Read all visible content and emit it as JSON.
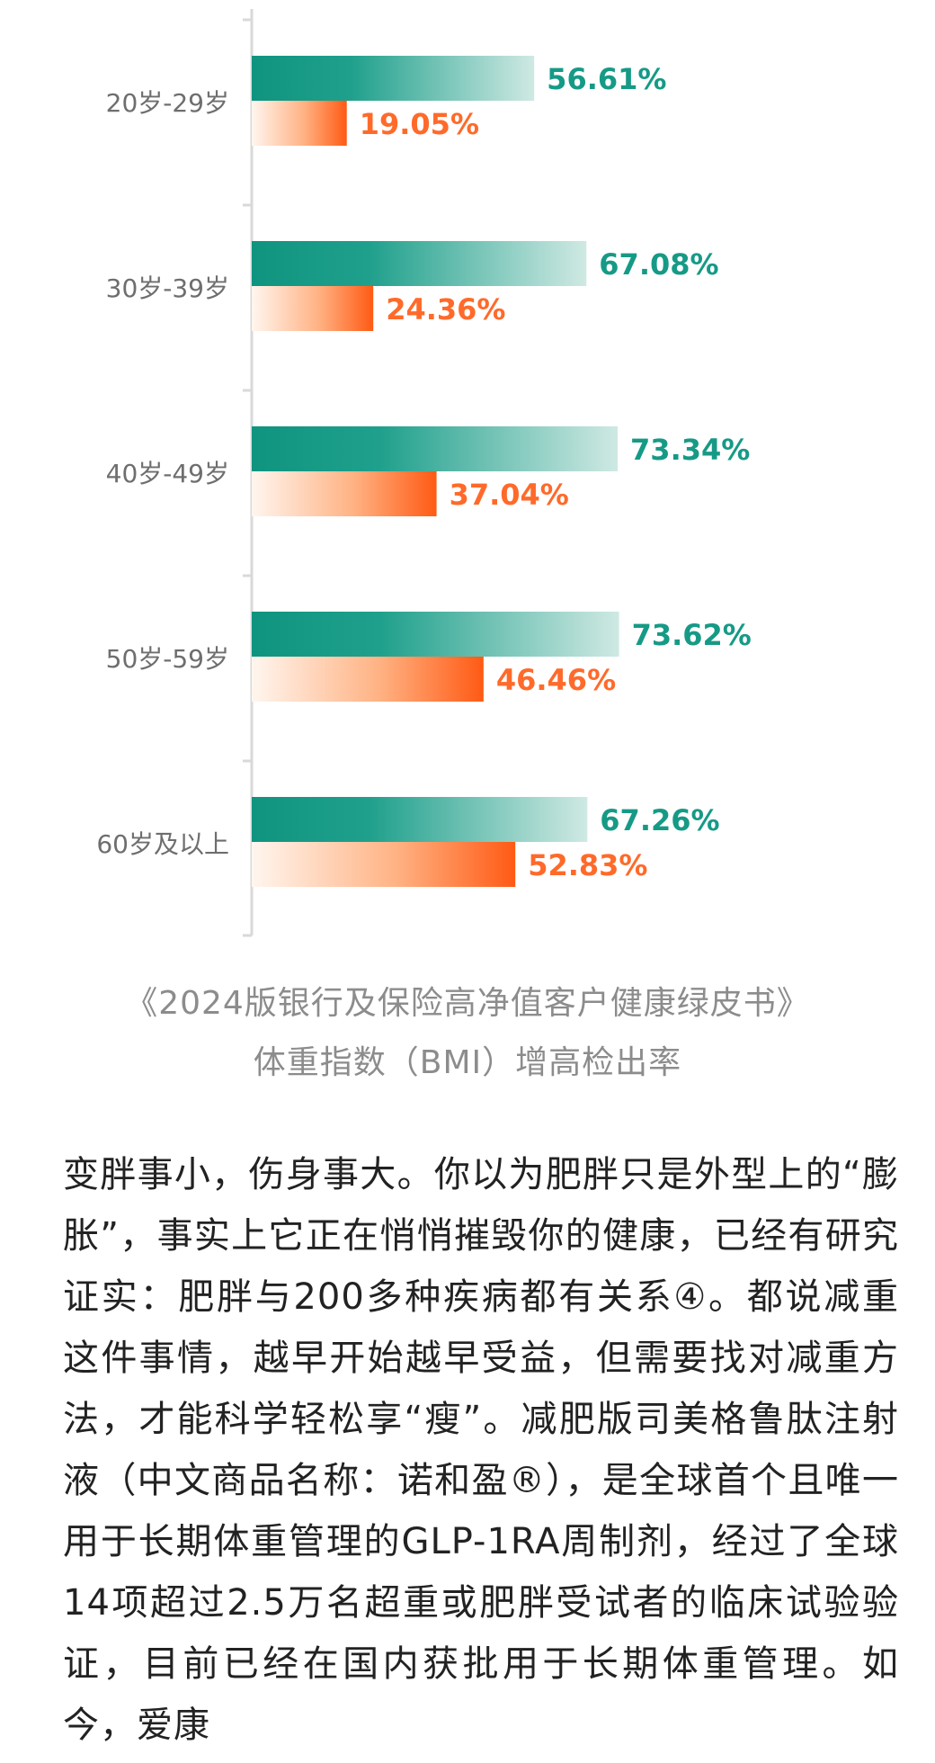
{
  "chart_data": {
    "type": "bar",
    "orientation": "horizontal",
    "categories": [
      "20岁-29岁",
      "30岁-39岁",
      "40岁-49岁",
      "50岁-59岁",
      "60岁及以上"
    ],
    "series": [
      {
        "values": [
          56.61,
          67.08,
          73.34,
          73.62,
          67.26
        ],
        "labels": [
          "56.61%",
          "67.08%",
          "73.34%",
          "73.62%",
          "67.26%"
        ],
        "color": "#169a86"
      },
      {
        "values": [
          19.05,
          24.36,
          37.04,
          46.46,
          52.83
        ],
        "labels": [
          "19.05%",
          "24.36%",
          "37.04%",
          "46.46%",
          "52.83%"
        ],
        "color": "#ff6a2a"
      }
    ],
    "xlim": [
      0,
      100
    ],
    "grid": false,
    "legend": "none"
  },
  "caption": {
    "line1": "《2024版银行及保险高净值客户健康绿皮书》",
    "line2": "体重指数（BMI）增高检出率"
  },
  "article": {
    "text": "变胖事小，伤身事大。你以为肥胖只是外型上的“膨胀”，事实上它正在悄悄摧毁你的健康，已经有研究证实：肥胖与200多种疾病都有关系④。都说减重这件事情，越早开始越早受益，但需要找对减重方法，才能科学轻松享“瘦”。减肥版司美格鲁肽注射液（中文商品名称：诺和盈®），是全球首个且唯一用于长期体重管理的GLP-1RA周制剂，经过了全球14项超过2.5万名超重或肥胖受试者的临床试验验证，目前已经在国内获批用于长期体重管理。如今，爱康"
  }
}
